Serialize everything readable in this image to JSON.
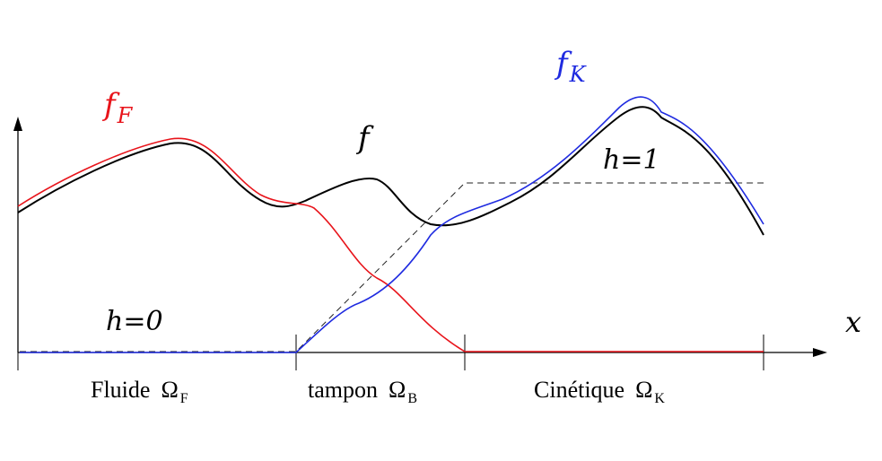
{
  "labels": {
    "f_F": {
      "main": "f",
      "sub": "F"
    },
    "f": "f",
    "f_K": {
      "main": "f",
      "sub": "K"
    },
    "h1": "h=1",
    "h0": "h=0",
    "x": "x"
  },
  "regions": [
    {
      "name": "Fluide",
      "symbol": "Ω",
      "sub": "F"
    },
    {
      "name": "tampon",
      "symbol": "Ω",
      "sub": "B"
    },
    {
      "name": "Cinétique",
      "symbol": "Ω",
      "sub": "K"
    }
  ],
  "colors": {
    "f_F": "#e8141b",
    "f_K": "#1f2be0",
    "f": "#000000",
    "h": "#000000",
    "axis": "#000000"
  }
}
